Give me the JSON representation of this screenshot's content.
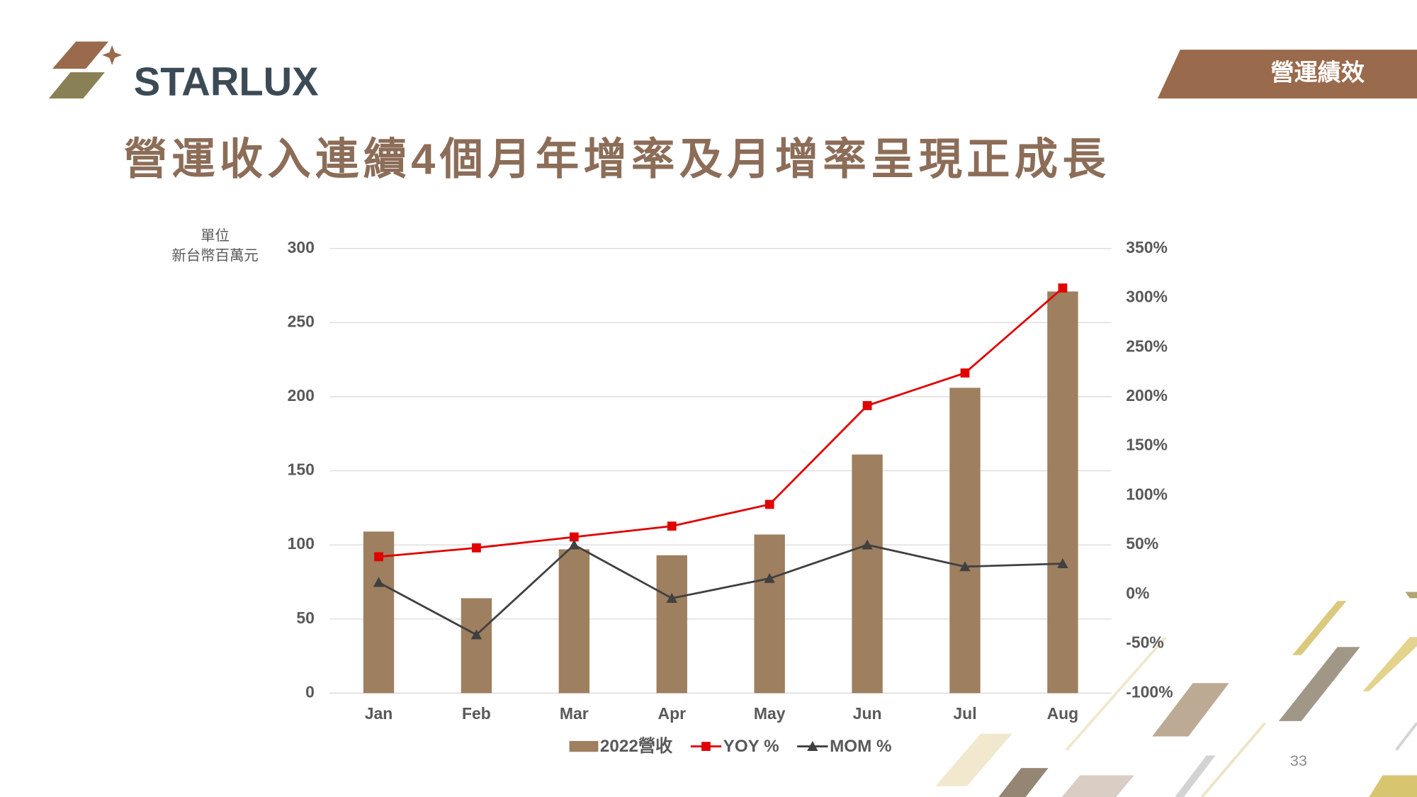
{
  "header": {
    "logo": "STARLUX",
    "section": "營運績效",
    "title": "營運收入連續4個月年增率及月增率呈現正成長"
  },
  "page_number": "33",
  "chart_data": {
    "type": "bar-line",
    "ylabel": [
      "單位",
      "新台幣百萬元"
    ],
    "categories": [
      "Jan",
      "Feb",
      "Mar",
      "Apr",
      "May",
      "Jun",
      "Jul",
      "Aug"
    ],
    "series": [
      {
        "name": "2022營收",
        "type": "bar",
        "color": "#9e7f5f",
        "values": [
          109,
          64,
          97,
          93,
          107,
          161,
          206,
          271
        ]
      },
      {
        "name": "YOY %",
        "type": "line",
        "marker": "square",
        "axis": "y2",
        "color": "#e00000",
        "values": [
          38,
          47,
          58,
          69,
          91,
          191,
          224,
          310
        ]
      },
      {
        "name": "MOM %",
        "type": "line",
        "marker": "triangle",
        "axis": "y2",
        "color": "#404040",
        "values": [
          12,
          -41,
          50,
          -4,
          16,
          50,
          28,
          31
        ]
      }
    ],
    "ylim": [
      0,
      300
    ],
    "yticks": [
      0,
      50,
      100,
      150,
      200,
      250,
      300
    ],
    "y2lim": [
      -100,
      350
    ],
    "y2ticks": [
      {
        "value": -100,
        "label": "-100%"
      },
      {
        "value": -50,
        "label": "-50%"
      },
      {
        "value": 0,
        "label": "0%"
      },
      {
        "value": 50,
        "label": "50%"
      },
      {
        "value": 100,
        "label": "100%"
      },
      {
        "value": 150,
        "label": "150%"
      },
      {
        "value": 200,
        "label": "200%"
      },
      {
        "value": 250,
        "label": "250%"
      },
      {
        "value": 300,
        "label": "300%"
      },
      {
        "value": 350,
        "label": "350%"
      }
    ],
    "grid": true,
    "legend": "bottom"
  }
}
